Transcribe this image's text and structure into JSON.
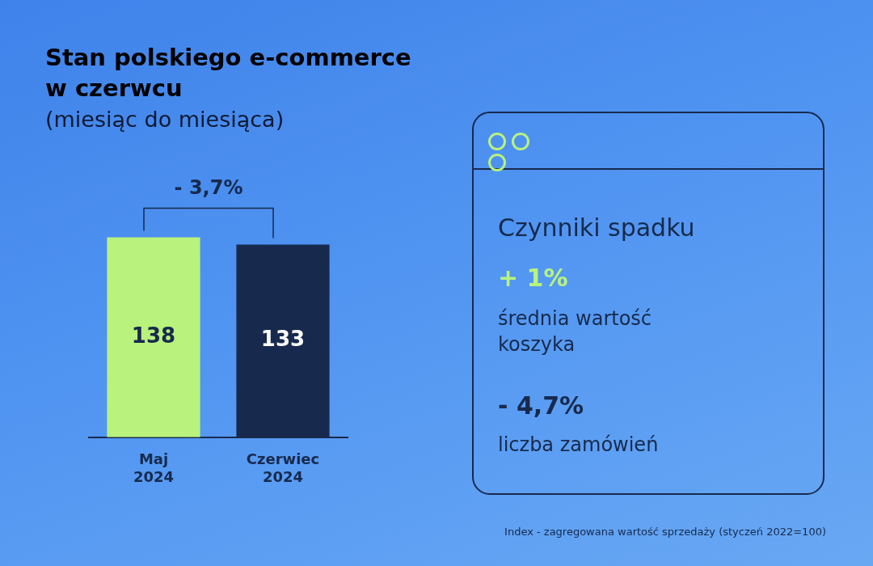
{
  "chart_data": [
    {
      "type": "bar",
      "title": "Stan polskiego e-commerce w czerwcu",
      "subtitle": "(miesiąc do miesiąca)",
      "categories": [
        "Maj 2024",
        "Czerwiec 2024"
      ],
      "values": [
        138,
        133
      ],
      "colors": [
        "#b9f27d",
        "#172a4d"
      ],
      "data_labels": true,
      "grid": false,
      "legend": false,
      "tick_labels": "x",
      "annotations": [
        "- 3,7%",
        "Index - zagregowana wartość sprzedaży (styczeń 2022=100)"
      ]
    },
    {
      "type": "other",
      "title": "Czynniki spadku",
      "annotations": [
        "+ 1%",
        "średnia wartość koszyka",
        "- 4,7%",
        "liczba zamówień"
      ]
    }
  ]
}
